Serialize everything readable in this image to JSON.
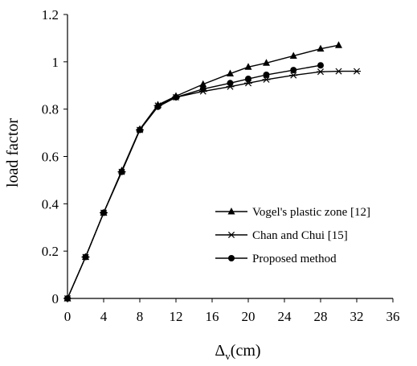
{
  "chart_data": {
    "type": "line",
    "xlabel_main": "Δ",
    "xlabel_sub": "v",
    "xlabel_unit": "(cm)",
    "ylabel": "load factor",
    "xlim": [
      0,
      36
    ],
    "ylim": [
      0,
      1.2
    ],
    "x_ticks": [
      0,
      4,
      8,
      12,
      16,
      20,
      24,
      28,
      32,
      36
    ],
    "y_ticks": [
      0,
      0.2,
      0.4,
      0.6,
      0.8,
      1,
      1.2
    ],
    "x_tick_labels": [
      "0",
      "4",
      "8",
      "12",
      "16",
      "20",
      "24",
      "28",
      "32",
      "36"
    ],
    "y_tick_labels": [
      "0",
      "0.2",
      "0.4",
      "0.6",
      "0.8",
      "1",
      "1.2"
    ],
    "grid": false,
    "legend_position": "bottom-right",
    "series": [
      {
        "name": "Vogel's plastic zone [12]",
        "marker": "triangle",
        "x": [
          0,
          2,
          4,
          6,
          8,
          10,
          12,
          15,
          18,
          20,
          22,
          25,
          28,
          30
        ],
        "y": [
          0,
          0.175,
          0.362,
          0.54,
          0.715,
          0.818,
          0.855,
          0.905,
          0.95,
          0.978,
          0.995,
          1.025,
          1.055,
          1.07
        ]
      },
      {
        "name": "Chan and Chui [15]",
        "marker": "asterisk",
        "x": [
          0,
          2,
          4,
          6,
          8,
          10,
          12,
          15,
          18,
          20,
          22,
          25,
          28,
          30,
          32
        ],
        "y": [
          0,
          0.175,
          0.362,
          0.535,
          0.712,
          0.815,
          0.85,
          0.875,
          0.895,
          0.91,
          0.925,
          0.943,
          0.958,
          0.96,
          0.96
        ]
      },
      {
        "name": "Proposed method",
        "marker": "circle",
        "x": [
          0,
          2,
          4,
          6,
          8,
          10,
          12,
          15,
          18,
          20,
          22,
          25,
          28
        ],
        "y": [
          0,
          0.175,
          0.362,
          0.535,
          0.712,
          0.81,
          0.85,
          0.885,
          0.91,
          0.928,
          0.945,
          0.965,
          0.985
        ]
      }
    ]
  }
}
